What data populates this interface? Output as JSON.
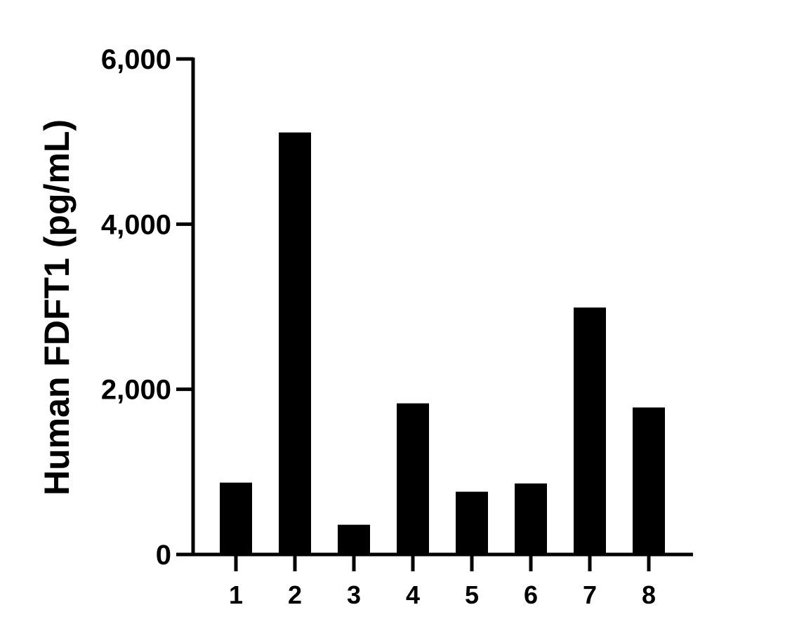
{
  "chart_data": {
    "type": "bar",
    "title": "",
    "xlabel": "",
    "ylabel": "Human FDFT1 (pg/mL)",
    "categories": [
      "1",
      "2",
      "3",
      "4",
      "5",
      "6",
      "7",
      "8"
    ],
    "values": [
      870,
      5110,
      360,
      1830,
      760,
      860,
      2990,
      1780
    ],
    "ylim": [
      0,
      6000
    ],
    "yticks": [
      0,
      2000,
      4000,
      6000
    ],
    "ytick_labels": [
      "0",
      "2,000",
      "4,000",
      "6,000"
    ],
    "grid": false,
    "legend": "none",
    "bar_color": "#000000"
  }
}
